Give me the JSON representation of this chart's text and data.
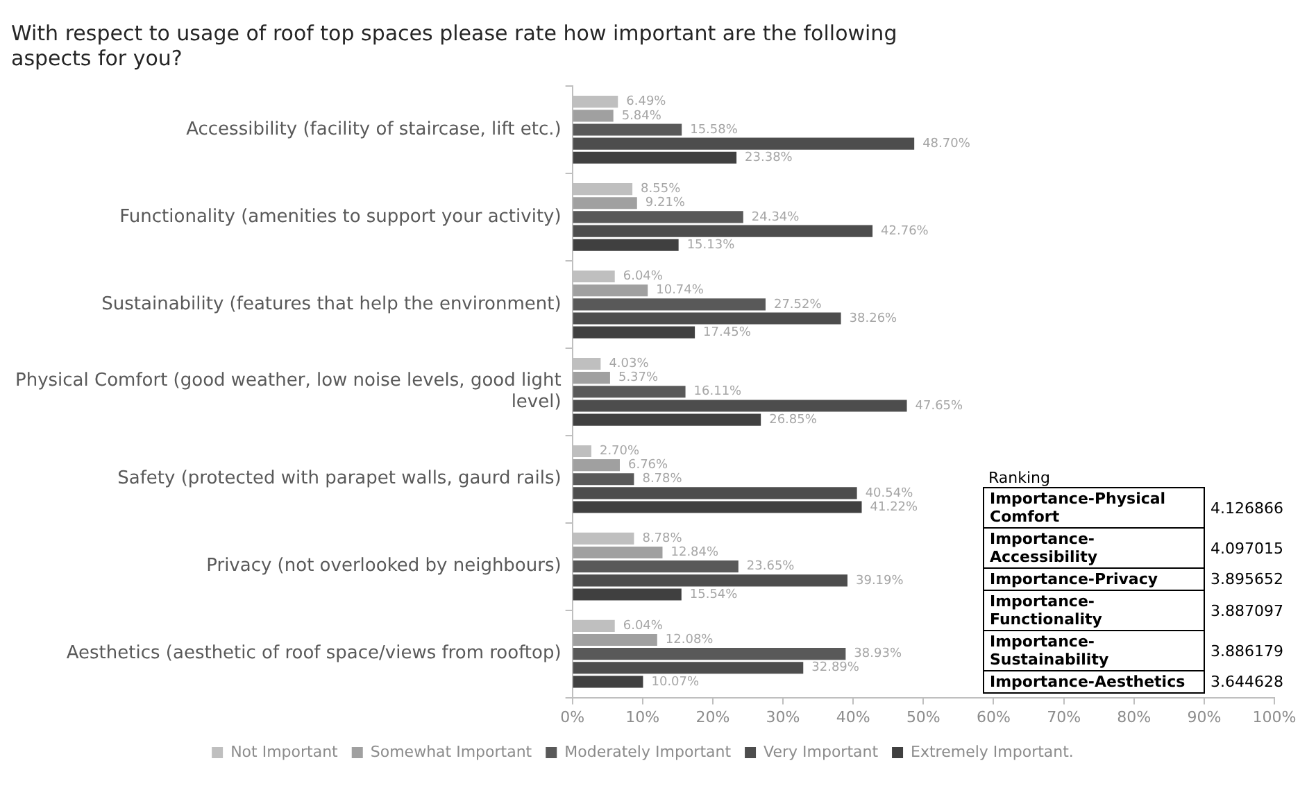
{
  "chart_data": {
    "type": "bar",
    "orientation": "horizontal",
    "title": "With respect to usage of roof top spaces please rate how important are the following aspects for you?",
    "categories": [
      "Accessibility (facility of staircase, lift etc.)",
      "Functionality (amenities to support your activity)",
      "Sustainability (features that help the environment)",
      "Physical Comfort (good weather, low noise levels, good light level)",
      "Safety (protected with parapet walls, gaurd rails)",
      "Privacy (not overlooked by neighbours)",
      "Aesthetics (aesthetic of roof space/views from rooftop)"
    ],
    "series": [
      {
        "name": "Not Important",
        "color": "#bfbfbf",
        "values": [
          6.49,
          8.55,
          6.04,
          4.03,
          2.7,
          8.78,
          6.04
        ],
        "value_labels": [
          "6.49%",
          "8.55%",
          "6.04%",
          "4.03%",
          "2.70%",
          "8.78%",
          "6.04%"
        ]
      },
      {
        "name": "Somewhat Important",
        "color": "#a0a0a0",
        "values": [
          5.84,
          9.21,
          10.74,
          5.37,
          6.76,
          12.84,
          12.08
        ],
        "value_labels": [
          "5.84%",
          "9.21%",
          "10.74%",
          "5.37%",
          "6.76%",
          "12.84%",
          "12.08%"
        ]
      },
      {
        "name": "Moderately Important",
        "color": "#595959",
        "values": [
          15.58,
          24.34,
          27.52,
          16.11,
          8.78,
          23.65,
          38.93
        ],
        "value_labels": [
          "15.58%",
          "24.34%",
          "27.52%",
          "16.11%",
          "8.78%",
          "23.65%",
          "38.93%"
        ]
      },
      {
        "name": "Very Important",
        "color": "#4d4d4d",
        "values": [
          48.7,
          42.76,
          38.26,
          47.65,
          40.54,
          39.19,
          32.89
        ],
        "value_labels": [
          "48.70%",
          "42.76%",
          "38.26%",
          "47.65%",
          "40.54%",
          "39.19%",
          "32.89%"
        ]
      },
      {
        "name": "Extremely Important.",
        "color": "#404040",
        "values": [
          23.38,
          15.13,
          17.45,
          26.85,
          41.22,
          15.54,
          10.07
        ],
        "value_labels": [
          "23.38%",
          "15.13%",
          "17.45%",
          "26.85%",
          "41.22%",
          "15.54%",
          "10.07%"
        ]
      }
    ],
    "xlim": [
      0,
      100
    ],
    "xticks": [
      {
        "value": 0,
        "label": "0%"
      },
      {
        "value": 10,
        "label": "10%"
      },
      {
        "value": 20,
        "label": "20%"
      },
      {
        "value": 30,
        "label": "30%"
      },
      {
        "value": 40,
        "label": "40%"
      },
      {
        "value": 50,
        "label": "50%"
      },
      {
        "value": 60,
        "label": "60%"
      },
      {
        "value": 70,
        "label": "70%"
      },
      {
        "value": 80,
        "label": "80%"
      },
      {
        "value": 90,
        "label": "90%"
      },
      {
        "value": 100,
        "label": "100%"
      }
    ],
    "grid": false,
    "legend": "bottom",
    "annotations": [
      "Ranking",
      "Importance-Physical Comfort",
      "4.126866",
      "Importance-Accessibility",
      "4.097015",
      "Importance-Privacy",
      "3.895652",
      "Importance-Functionality",
      "3.887097",
      "Importance-Sustainability",
      "3.886179",
      "Importance-Aesthetics",
      "3.644628"
    ]
  }
}
